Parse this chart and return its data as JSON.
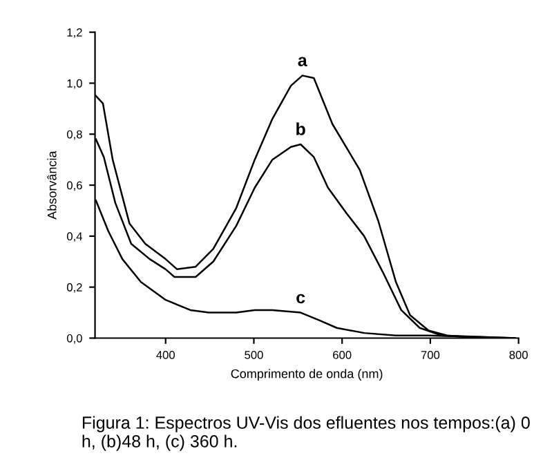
{
  "chart_data": {
    "type": "line",
    "xlabel": "Comprimento de onda (nm)",
    "ylabel": "Absorvância",
    "xlim": [
      320,
      800
    ],
    "ylim": [
      0,
      1.2
    ],
    "xticks": [
      400,
      500,
      600,
      700,
      800
    ],
    "yticks": [
      {
        "value": 0,
        "label": "0,0"
      },
      {
        "value": 0.2,
        "label": "0,2"
      },
      {
        "value": 0.4,
        "label": "0,4"
      },
      {
        "value": 0.6,
        "label": "0,6"
      },
      {
        "value": 0.8,
        "label": "0,8"
      },
      {
        "value": 1.0,
        "label": "1,0"
      },
      {
        "value": 1.2,
        "label": "1,2"
      }
    ],
    "grid": false,
    "series": [
      {
        "name": "a",
        "color": "#000000",
        "x": [
          321,
          329,
          340,
          359,
          377,
          400,
          413,
          434,
          454,
          480,
          501,
          521,
          542,
          555,
          568,
          589,
          620,
          641,
          661,
          677,
          698,
          719,
          755,
          796
        ],
        "values": [
          0.95,
          0.92,
          0.7,
          0.45,
          0.37,
          0.31,
          0.27,
          0.28,
          0.35,
          0.51,
          0.7,
          0.86,
          0.99,
          1.03,
          1.02,
          0.84,
          0.66,
          0.46,
          0.22,
          0.09,
          0.03,
          0.01,
          0.0,
          0.0
        ]
      },
      {
        "name": "b",
        "color": "#000000",
        "x": [
          321,
          330,
          343,
          361,
          382,
          400,
          410,
          434,
          454,
          480,
          501,
          521,
          542,
          553,
          568,
          584,
          605,
          625,
          646,
          667,
          688,
          713,
          796
        ],
        "values": [
          0.78,
          0.71,
          0.53,
          0.37,
          0.31,
          0.27,
          0.24,
          0.24,
          0.3,
          0.44,
          0.59,
          0.7,
          0.75,
          0.76,
          0.71,
          0.59,
          0.49,
          0.4,
          0.26,
          0.11,
          0.04,
          0.01,
          0.0
        ]
      },
      {
        "name": "c",
        "color": "#000000",
        "x": [
          321,
          335,
          351,
          372,
          400,
          428,
          449,
          480,
          501,
          521,
          553,
          574,
          594,
          625,
          661,
          698,
          796
        ],
        "values": [
          0.54,
          0.42,
          0.31,
          0.22,
          0.15,
          0.11,
          0.1,
          0.1,
          0.11,
          0.11,
          0.1,
          0.07,
          0.04,
          0.02,
          0.01,
          0.01,
          0.0
        ]
      }
    ],
    "annotations": [
      "Figura 1: Espectros UV-Vis dos efluentes nos tempos:(a) 0 h, (b)48 h, (c) 360 h."
    ]
  }
}
